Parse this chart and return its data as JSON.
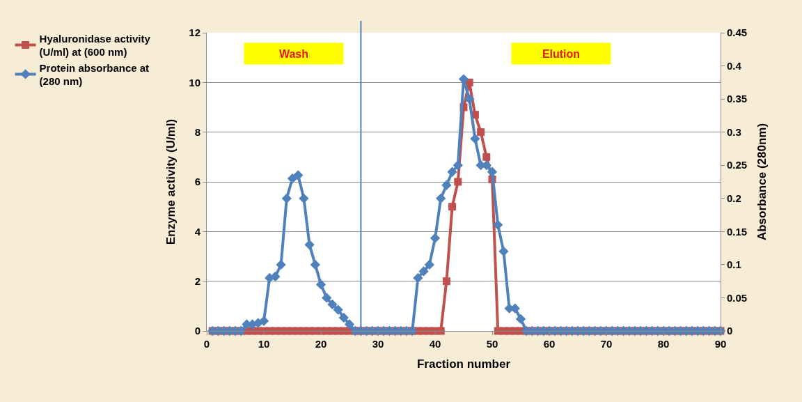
{
  "chart_data": {
    "type": "line",
    "xlabel": "Fraction number",
    "ylabel": "Enzyme activity (U/ml)",
    "y2label": "Absorbance (280nm)",
    "x": [
      1,
      2,
      3,
      4,
      5,
      6,
      7,
      8,
      9,
      10,
      11,
      12,
      13,
      14,
      15,
      16,
      17,
      18,
      19,
      20,
      21,
      22,
      23,
      24,
      25,
      26,
      27,
      28,
      29,
      30,
      31,
      32,
      33,
      34,
      35,
      36,
      37,
      38,
      39,
      40,
      41,
      42,
      43,
      44,
      45,
      46,
      47,
      48,
      49,
      50,
      51,
      52,
      53,
      54,
      55,
      56,
      57,
      58,
      59,
      60,
      61,
      62,
      63,
      64,
      65,
      66,
      67,
      68,
      69,
      70,
      71,
      72,
      73,
      74,
      75,
      76,
      77,
      78,
      79,
      80,
      81,
      82,
      83,
      84,
      85,
      86,
      87,
      88,
      89,
      90
    ],
    "series": [
      {
        "name": "Hyaluronidase activity (U/ml) at (600 nm)",
        "color": "#c0504d",
        "marker": "square",
        "values": [
          0,
          0,
          0,
          0,
          0,
          0,
          0,
          0,
          0,
          0,
          0,
          0,
          0,
          0,
          0,
          0,
          0,
          0,
          0,
          0,
          0,
          0,
          0,
          0,
          0,
          0,
          0,
          0,
          0,
          0,
          0,
          0,
          0,
          0,
          0,
          0,
          0,
          0,
          0,
          0,
          0,
          2,
          5,
          6,
          9,
          10,
          8.7,
          8,
          7,
          6.1,
          0,
          0,
          0,
          0,
          0,
          0,
          0,
          0,
          0,
          0,
          0,
          0,
          0,
          0,
          0,
          0,
          0,
          0,
          0,
          0,
          0,
          0,
          0,
          0,
          0,
          0,
          0,
          0,
          0,
          0,
          0,
          0,
          0,
          0,
          0,
          0,
          0,
          0,
          0,
          0
        ]
      },
      {
        "name": "Protein absorbance at (280 nm)",
        "color": "#4f81bd",
        "marker": "diamond",
        "axis": "y2",
        "values": [
          0,
          0,
          0,
          0,
          0,
          0,
          0.01,
          0.01,
          0.012,
          0.015,
          0.08,
          0.082,
          0.1,
          0.2,
          0.23,
          0.235,
          0.2,
          0.13,
          0.1,
          0.07,
          0.05,
          0.04,
          0.032,
          0.02,
          0.01,
          0,
          0,
          0,
          0,
          0,
          0,
          0,
          0,
          0,
          0,
          0,
          0.08,
          0.09,
          0.1,
          0.14,
          0.2,
          0.22,
          0.24,
          0.25,
          0.38,
          0.35,
          0.29,
          0.25,
          0.25,
          0.24,
          0.16,
          0.12,
          0.034,
          0.034,
          0.018,
          0,
          0,
          0,
          0,
          0,
          0,
          0,
          0,
          0,
          0,
          0,
          0,
          0,
          0,
          0,
          0,
          0,
          0,
          0,
          0,
          0,
          0,
          0,
          0,
          0,
          0,
          0,
          0,
          0,
          0,
          0,
          0,
          0,
          0,
          0
        ]
      }
    ],
    "xlim": [
      0,
      90
    ],
    "xticks": [
      0,
      10,
      20,
      30,
      40,
      50,
      60,
      70,
      80,
      90
    ],
    "ylim": [
      0,
      12
    ],
    "yticks": [
      0,
      2,
      4,
      6,
      8,
      10,
      12
    ],
    "y2lim": [
      0,
      0.45
    ],
    "y2ticks": [
      0,
      0.05,
      0.1,
      0.15,
      0.2,
      0.25,
      0.3,
      0.35,
      0.4,
      0.45
    ],
    "ref_lines": [
      {
        "axis": "x",
        "value": 27,
        "color": "#4f81bd"
      }
    ],
    "annotations": [
      "Wash",
      "Elution"
    ],
    "grid": "y",
    "legend": "top left",
    "line_style": "solid"
  }
}
